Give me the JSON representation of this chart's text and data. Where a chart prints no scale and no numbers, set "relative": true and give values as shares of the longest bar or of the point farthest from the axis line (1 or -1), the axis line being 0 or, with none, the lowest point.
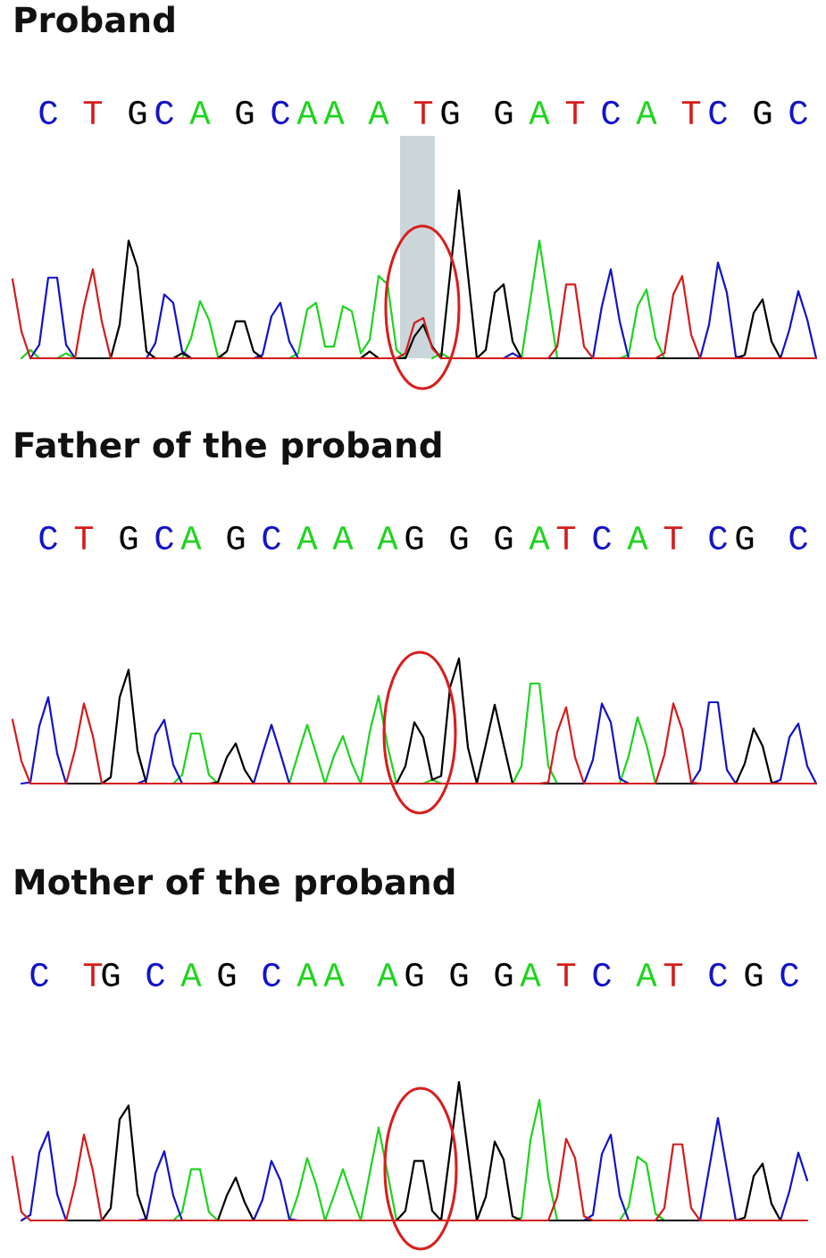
{
  "chart_data": [
    {
      "type": "line",
      "title": "Proband",
      "relative": true,
      "tick_labels": "x",
      "categories": [
        null,
        null,
        null,
        null,
        "C",
        null,
        null,
        null,
        null,
        "T",
        null,
        null,
        null,
        null,
        "G",
        null,
        null,
        "C",
        null,
        null,
        null,
        "A",
        null,
        null,
        null,
        null,
        "G",
        null,
        null,
        null,
        "C",
        null,
        null,
        "A",
        null,
        null,
        "A",
        null,
        null,
        null,
        null,
        "A",
        null,
        null,
        null,
        null,
        "T",
        null,
        null,
        "G",
        null,
        null,
        null,
        null,
        null,
        "G",
        null,
        null,
        null,
        "A",
        null,
        null,
        null,
        "T",
        null,
        null,
        null,
        "C",
        null,
        null,
        null,
        "A",
        null,
        null,
        null,
        null,
        "T",
        null,
        null,
        "C",
        null,
        null,
        null,
        null,
        "G",
        null,
        null,
        null,
        "C",
        null,
        null
      ],
      "series": [
        {
          "color": "#1ed41e",
          "values": [
            null,
            0,
            0.05,
            0,
            null,
            0,
            0.03,
            0,
            null,
            null,
            null,
            null,
            null,
            null,
            null,
            null,
            null,
            null,
            null,
            0,
            0.12,
            0.34,
            0.23,
            0.01,
            0,
            null,
            null,
            null,
            null,
            null,
            null,
            0,
            0.03,
            0.29,
            0.33,
            0.07,
            0.07,
            0.31,
            0.28,
            0.03,
            0.11,
            0.49,
            0.44,
            0.05,
            0,
            null,
            null,
            0,
            0.03,
            0,
            null,
            null,
            null,
            null,
            null,
            null,
            null,
            0,
            0.35,
            0.7,
            0.35,
            0,
            null,
            null,
            null,
            null,
            null,
            null,
            0,
            0.02,
            0.31,
            0.41,
            0.12,
            0,
            null,
            null,
            null,
            null,
            null,
            null,
            null,
            null,
            null,
            null,
            null,
            null,
            null,
            null,
            null,
            null,
            null
          ]
        },
        {
          "color": "#1414c8",
          "values": [
            null,
            null,
            0,
            0.08,
            0.48,
            0.48,
            0.08,
            0,
            null,
            null,
            null,
            null,
            null,
            null,
            null,
            0,
            0.09,
            0.38,
            0.33,
            0.04,
            0,
            null,
            null,
            null,
            null,
            null,
            null,
            0,
            0.02,
            0.25,
            0.33,
            0.1,
            0,
            null,
            null,
            null,
            null,
            null,
            null,
            null,
            null,
            null,
            null,
            null,
            null,
            null,
            null,
            null,
            null,
            null,
            null,
            null,
            null,
            null,
            null,
            0,
            0.03,
            0,
            null,
            null,
            null,
            null,
            null,
            null,
            null,
            0,
            0.31,
            0.53,
            0.22,
            0,
            null,
            null,
            null,
            null,
            null,
            null,
            null,
            0,
            0.2,
            0.57,
            0.39,
            0.01,
            0,
            null,
            null,
            null,
            0,
            0.17,
            0.4,
            0.23,
            0
          ]
        },
        {
          "color": "#000000",
          "values": [
            null,
            null,
            null,
            null,
            null,
            null,
            null,
            0,
            0,
            0,
            0,
            0,
            0.2,
            0.7,
            0.54,
            0.04,
            0,
            null,
            0,
            0.03,
            0,
            null,
            null,
            0,
            0.04,
            0.22,
            0.22,
            0.04,
            0,
            null,
            null,
            null,
            null,
            null,
            null,
            null,
            null,
            null,
            null,
            0,
            0.04,
            0,
            null,
            0,
            0,
            0.13,
            0.2,
            0.07,
            0,
            0.5,
            1.0,
            0.5,
            0,
            0.05,
            0.39,
            0.44,
            0.1,
            0,
            null,
            null,
            0,
            0,
            0,
            0,
            0,
            0,
            null,
            null,
            null,
            null,
            null,
            null,
            0,
            0,
            0,
            0,
            0,
            0,
            null,
            null,
            null,
            0,
            0.02,
            0.27,
            0.35,
            0.1,
            0,
            null,
            null,
            null,
            null
          ]
        },
        {
          "color": "#d41c1c",
          "values": [
            0.47,
            0.16,
            0,
            0,
            0,
            0,
            0,
            0,
            0.31,
            0.53,
            0.22,
            0,
            0,
            0,
            0,
            0,
            0,
            0,
            0,
            0,
            0,
            0,
            0,
            0,
            0,
            0,
            0,
            0,
            0,
            0,
            0,
            0,
            0,
            0,
            0,
            0,
            0,
            0,
            0,
            0,
            0,
            0,
            0,
            0,
            0.03,
            0.21,
            0.24,
            0.06,
            0,
            0,
            0,
            0,
            0,
            0,
            0,
            0,
            0,
            0,
            0,
            0,
            0,
            0.07,
            0.44,
            0.44,
            0.07,
            0,
            0,
            0,
            0,
            0,
            0,
            0,
            0,
            0.03,
            0.38,
            0.49,
            0.14,
            0,
            0,
            0,
            0,
            0,
            0,
            0,
            0,
            0,
            0,
            0,
            0,
            0,
            0
          ]
        }
      ]
    },
    {
      "type": "line",
      "title": "Father of the proband",
      "relative": true,
      "tick_labels": "x",
      "categories": [
        null,
        null,
        null,
        null,
        "C",
        null,
        null,
        null,
        "T",
        null,
        null,
        null,
        null,
        "G",
        null,
        null,
        null,
        "C",
        null,
        null,
        "A",
        null,
        null,
        null,
        null,
        "G",
        null,
        null,
        null,
        "C",
        null,
        null,
        null,
        "A",
        null,
        null,
        null,
        "A",
        null,
        null,
        null,
        null,
        "A",
        null,
        null,
        "G",
        null,
        null,
        null,
        null,
        "G",
        null,
        null,
        null,
        null,
        "G",
        null,
        null,
        null,
        "A",
        null,
        null,
        "T",
        null,
        null,
        null,
        "C",
        null,
        null,
        null,
        "A",
        null,
        null,
        null,
        "T",
        null,
        null,
        null,
        null,
        "C",
        null,
        null,
        "G",
        null,
        null,
        null,
        null,
        null,
        "C",
        null,
        null
      ],
      "series": [
        {
          "color": "#1ed41e",
          "values": [
            null,
            null,
            null,
            null,
            null,
            null,
            null,
            null,
            null,
            null,
            null,
            null,
            null,
            null,
            null,
            null,
            null,
            null,
            0,
            0.07,
            0.4,
            0.4,
            0.07,
            0,
            null,
            null,
            null,
            null,
            null,
            null,
            null,
            0,
            0.24,
            0.47,
            0.24,
            0,
            0.22,
            0.38,
            0.16,
            0,
            0.41,
            0.7,
            0.3,
            0,
            null,
            null,
            0,
            0.03,
            0,
            null,
            null,
            null,
            null,
            null,
            null,
            null,
            0,
            0.14,
            0.8,
            0.8,
            0.14,
            0,
            null,
            null,
            null,
            null,
            null,
            null,
            0,
            0.22,
            0.53,
            0.31,
            0,
            null,
            null,
            null,
            null,
            null,
            null,
            null,
            null,
            null,
            null,
            null,
            null,
            null,
            null,
            null,
            null,
            null,
            null
          ]
        },
        {
          "color": "#1414c8",
          "values": [
            null,
            0,
            0.01,
            0.46,
            0.69,
            0.24,
            0,
            null,
            null,
            null,
            null,
            null,
            null,
            null,
            0,
            0.03,
            0.39,
            0.51,
            0.15,
            0,
            null,
            null,
            null,
            null,
            null,
            null,
            null,
            0,
            0.24,
            0.47,
            0.24,
            0,
            null,
            null,
            null,
            null,
            null,
            null,
            null,
            null,
            null,
            null,
            null,
            null,
            null,
            null,
            null,
            null,
            null,
            null,
            null,
            null,
            null,
            null,
            null,
            null,
            null,
            null,
            null,
            null,
            null,
            null,
            null,
            null,
            0,
            0.19,
            0.64,
            0.49,
            0.04,
            0,
            null,
            null,
            null,
            null,
            null,
            null,
            0,
            0.11,
            0.65,
            0.65,
            0.11,
            0,
            null,
            null,
            null,
            0,
            0.03,
            0.37,
            0.48,
            0.14,
            0
          ]
        },
        {
          "color": "#000000",
          "values": [
            null,
            null,
            null,
            null,
            null,
            null,
            0,
            0,
            0,
            0,
            0,
            0.05,
            0.69,
            0.91,
            0.26,
            0,
            null,
            null,
            null,
            null,
            null,
            null,
            0,
            0.01,
            0.21,
            0.32,
            0.11,
            0,
            null,
            null,
            null,
            null,
            null,
            null,
            null,
            null,
            null,
            null,
            null,
            null,
            null,
            null,
            null,
            0,
            0.14,
            0.49,
            0.37,
            0.03,
            0.06,
            0.77,
            1.0,
            0.29,
            0,
            0.31,
            0.63,
            0.31,
            0,
            null,
            null,
            0,
            0,
            0,
            0,
            0,
            0,
            null,
            null,
            null,
            null,
            null,
            null,
            null,
            0,
            0,
            0,
            0,
            0,
            0,
            null,
            null,
            null,
            0,
            0.16,
            0.44,
            0.3,
            0.01,
            0,
            null,
            null,
            null,
            null
          ]
        },
        {
          "color": "#d41c1c",
          "values": [
            0.51,
            0.18,
            0,
            0,
            0,
            0,
            0,
            0.27,
            0.64,
            0.38,
            0,
            0,
            0,
            0,
            0,
            0,
            0,
            0,
            0,
            0,
            0,
            0,
            0,
            0,
            0,
            0,
            0,
            0,
            0,
            0,
            0,
            0,
            0,
            0,
            0,
            0,
            0,
            0,
            0,
            0,
            0,
            0,
            0,
            0,
            0,
            0,
            0,
            0,
            0,
            0,
            0,
            0,
            0,
            0,
            0,
            0,
            0,
            0,
            0,
            0,
            0.01,
            0.41,
            0.61,
            0.21,
            0,
            0,
            0,
            0,
            0,
            0,
            0,
            0,
            0,
            0.23,
            0.64,
            0.43,
            0.01,
            0,
            0,
            0,
            0,
            0,
            0,
            0,
            0,
            0,
            0,
            0,
            0,
            0,
            0
          ]
        }
      ]
    },
    {
      "type": "line",
      "title": "Mother of the proband",
      "relative": true,
      "tick_labels": "x",
      "categories": [
        null,
        null,
        null,
        "C",
        null,
        null,
        null,
        null,
        null,
        "T",
        null,
        "G",
        null,
        null,
        null,
        null,
        "C",
        null,
        null,
        null,
        "A",
        null,
        null,
        null,
        "G",
        null,
        null,
        null,
        null,
        "C",
        null,
        null,
        null,
        "A",
        null,
        null,
        "A",
        null,
        null,
        null,
        null,
        null,
        "A",
        null,
        null,
        "G",
        null,
        null,
        null,
        null,
        "G",
        null,
        null,
        null,
        null,
        "G",
        null,
        null,
        "A",
        null,
        null,
        null,
        "T",
        null,
        null,
        null,
        "C",
        null,
        null,
        null,
        null,
        "A",
        null,
        null,
        "T",
        null,
        null,
        null,
        null,
        "C",
        null,
        null,
        null,
        "G",
        null,
        null,
        null,
        "C",
        null,
        null,
        null
      ],
      "series": [
        {
          "color": "#1ed41e",
          "values": [
            null,
            null,
            null,
            null,
            null,
            null,
            null,
            null,
            null,
            null,
            null,
            null,
            null,
            null,
            null,
            null,
            null,
            null,
            0,
            0.06,
            0.37,
            0.37,
            0.06,
            0,
            null,
            null,
            null,
            null,
            null,
            null,
            null,
            0,
            0.19,
            0.45,
            0.26,
            0,
            0.18,
            0.37,
            0.18,
            0,
            0.34,
            0.67,
            0.34,
            0,
            null,
            null,
            null,
            null,
            null,
            null,
            null,
            null,
            null,
            null,
            null,
            null,
            0,
            0.02,
            0.58,
            0.87,
            0.31,
            0,
            null,
            null,
            null,
            null,
            null,
            null,
            0,
            0.1,
            0.46,
            0.41,
            0.05,
            0,
            null,
            null,
            null,
            null,
            null,
            null,
            null,
            null,
            null,
            null,
            null,
            null,
            null,
            null,
            null,
            null,
            null
          ]
        },
        {
          "color": "#1414c8",
          "values": [
            null,
            0,
            0.04,
            0.49,
            0.64,
            0.19,
            0,
            null,
            null,
            null,
            null,
            null,
            null,
            null,
            0,
            0.01,
            0.34,
            0.5,
            0.18,
            0,
            null,
            null,
            null,
            null,
            null,
            null,
            null,
            0,
            0.15,
            0.43,
            0.29,
            0.01,
            0,
            null,
            null,
            null,
            null,
            null,
            null,
            null,
            null,
            null,
            null,
            null,
            null,
            null,
            null,
            null,
            null,
            null,
            null,
            null,
            null,
            null,
            null,
            null,
            null,
            null,
            null,
            null,
            null,
            null,
            null,
            null,
            0,
            0.04,
            0.48,
            0.62,
            0.18,
            0,
            null,
            null,
            null,
            null,
            null,
            null,
            null,
            0,
            0.37,
            0.74,
            0.37,
            0,
            null,
            null,
            null,
            null,
            0,
            0.21,
            0.49,
            0.29,
            null
          ]
        },
        {
          "color": "#000000",
          "values": [
            null,
            null,
            null,
            null,
            null,
            null,
            0,
            0,
            0,
            0,
            0,
            0.09,
            0.73,
            0.83,
            0.19,
            0,
            null,
            null,
            null,
            null,
            null,
            null,
            null,
            0,
            0.18,
            0.31,
            0.13,
            0,
            null,
            null,
            null,
            null,
            null,
            null,
            null,
            null,
            null,
            null,
            null,
            null,
            null,
            null,
            null,
            0,
            0.07,
            0.43,
            0.43,
            0.07,
            0,
            0.5,
            1.0,
            0.5,
            0,
            0.17,
            0.57,
            0.44,
            0.03,
            0,
            null,
            null,
            0,
            0,
            0,
            0,
            0,
            0,
            null,
            null,
            null,
            null,
            null,
            null,
            0,
            0,
            0,
            0,
            0,
            0,
            null,
            null,
            null,
            0,
            0.02,
            0.32,
            0.41,
            0.12,
            0,
            null,
            null,
            null,
            null
          ]
        },
        {
          "color": "#d41c1c",
          "values": [
            0.46,
            0.06,
            0,
            0,
            0,
            0,
            0,
            0.26,
            0.62,
            0.36,
            0,
            0,
            0,
            0,
            0,
            0,
            0,
            0,
            0,
            0,
            0,
            0,
            0,
            0,
            0,
            0,
            0,
            0,
            0,
            0,
            0,
            0,
            0,
            0,
            0,
            0,
            0,
            0,
            0,
            0,
            0,
            0,
            0,
            0,
            0,
            0,
            0,
            0,
            0,
            0,
            0,
            0,
            0,
            0,
            0,
            0,
            0,
            0,
            0,
            0,
            0,
            0.17,
            0.59,
            0.45,
            0.03,
            0,
            0,
            0,
            0,
            0,
            0,
            0,
            0,
            0.09,
            0.55,
            0.55,
            0.09,
            0,
            0,
            0,
            0,
            0,
            0,
            0,
            0,
            0,
            0,
            0,
            0,
            0,
            null
          ]
        }
      ]
    }
  ]
}
